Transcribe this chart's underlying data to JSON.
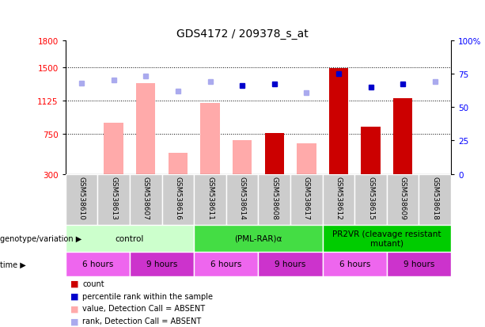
{
  "title": "GDS4172 / 209378_s_at",
  "samples": [
    "GSM538610",
    "GSM538613",
    "GSM538607",
    "GSM538616",
    "GSM538611",
    "GSM538614",
    "GSM538608",
    "GSM538617",
    "GSM538612",
    "GSM538615",
    "GSM538609",
    "GSM538618"
  ],
  "bar_values": [
    300,
    870,
    1320,
    540,
    1100,
    680,
    760,
    640,
    1490,
    830,
    1150,
    300
  ],
  "bar_colors": [
    "#ffaaaa",
    "#ffaaaa",
    "#ffaaaa",
    "#ffaaaa",
    "#ffaaaa",
    "#ffaaaa",
    "#cc0000",
    "#ffaaaa",
    "#cc0000",
    "#cc0000",
    "#cc0000",
    "#ffaaaa"
  ],
  "rank_dots": [
    68,
    70,
    73,
    62,
    69,
    66,
    67,
    61,
    75,
    65,
    67,
    69
  ],
  "rank_dot_colors": [
    "#aaaaee",
    "#aaaaee",
    "#aaaaee",
    "#aaaaee",
    "#aaaaee",
    "#0000cc",
    "#0000cc",
    "#aaaaee",
    "#0000cc",
    "#0000cc",
    "#0000cc",
    "#aaaaee"
  ],
  "ylim_left": [
    300,
    1800
  ],
  "ylim_right": [
    0,
    100
  ],
  "yticks_left": [
    300,
    750,
    1125,
    1500,
    1800
  ],
  "yticks_right": [
    0,
    25,
    50,
    75,
    100
  ],
  "hlines": [
    750,
    1125,
    1500
  ],
  "genotype_groups": [
    {
      "label": "control",
      "start": 0,
      "end": 4,
      "color": "#ccffcc"
    },
    {
      "label": "(PML-RAR)α",
      "start": 4,
      "end": 8,
      "color": "#44dd44"
    },
    {
      "label": "PR2VR (cleavage resistant\nmutant)",
      "start": 8,
      "end": 12,
      "color": "#00cc00"
    }
  ],
  "time_groups": [
    {
      "label": "6 hours",
      "start": 0,
      "end": 2,
      "color": "#ee66ee"
    },
    {
      "label": "9 hours",
      "start": 2,
      "end": 4,
      "color": "#cc33cc"
    },
    {
      "label": "6 hours",
      "start": 4,
      "end": 6,
      "color": "#ee66ee"
    },
    {
      "label": "9 hours",
      "start": 6,
      "end": 8,
      "color": "#cc33cc"
    },
    {
      "label": "6 hours",
      "start": 8,
      "end": 10,
      "color": "#ee66ee"
    },
    {
      "label": "9 hours",
      "start": 10,
      "end": 12,
      "color": "#cc33cc"
    }
  ],
  "legend_items": [
    {
      "color": "#cc0000",
      "label": "count"
    },
    {
      "color": "#0000cc",
      "label": "percentile rank within the sample"
    },
    {
      "color": "#ffaaaa",
      "label": "value, Detection Call = ABSENT"
    },
    {
      "color": "#aaaaee",
      "label": "rank, Detection Call = ABSENT"
    }
  ],
  "bg_color": "#ffffff",
  "title_fontsize": 10,
  "tick_fontsize": 7.5,
  "sample_fontsize": 6.5,
  "annotation_fontsize": 7.5,
  "legend_fontsize": 7
}
